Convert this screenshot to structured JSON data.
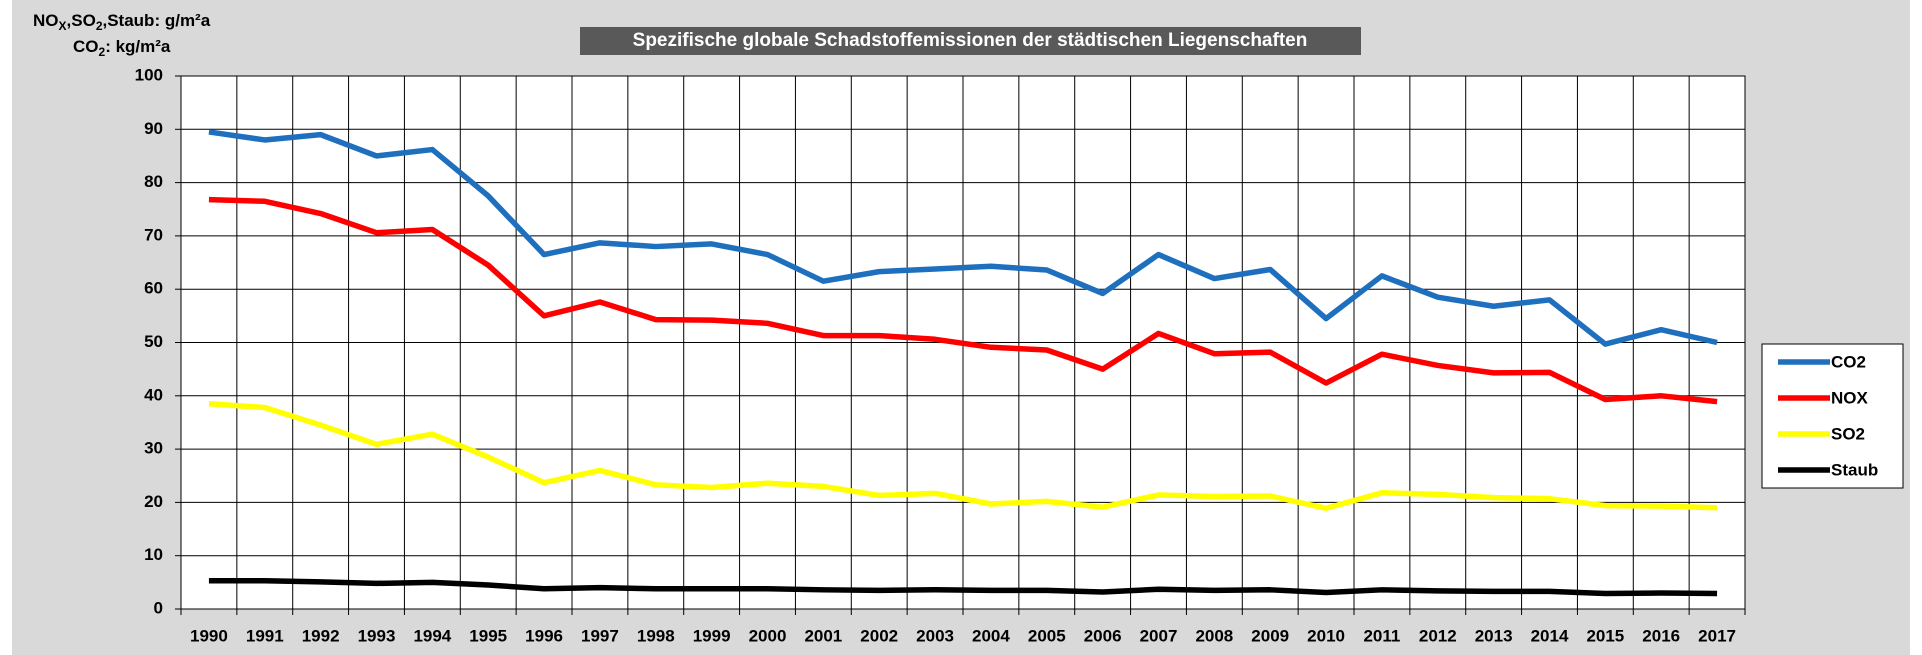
{
  "chart_data": {
    "type": "line",
    "title": "Spezifische globale Schadstoffemissionen der städtischen Liegenschaften",
    "y_label": [
      [
        "NO",
        "X",
        ",SO",
        "2",
        ",Staub: g/m²a"
      ],
      [
        "CO",
        "2",
        ": kg/m²a"
      ]
    ],
    "categories": [
      "1990",
      "1991",
      "1992",
      "1993",
      "1994",
      "1995",
      "1996",
      "1997",
      "1998",
      "1999",
      "2000",
      "2001",
      "2002",
      "2003",
      "2004",
      "2005",
      "2006",
      "2007",
      "2008",
      "2009",
      "2010",
      "2011",
      "2012",
      "2013",
      "2014",
      "2015",
      "2016",
      "2017"
    ],
    "ylim": [
      0,
      100
    ],
    "yticks": [
      0,
      10,
      20,
      30,
      40,
      50,
      60,
      70,
      80,
      90,
      100
    ],
    "grid": true,
    "legend": "right",
    "series": [
      {
        "name": "CO2",
        "color": "#1f6fbf",
        "values": [
          89.5,
          88,
          89,
          85,
          86.2,
          77.5,
          66.5,
          68.7,
          68,
          68.5,
          66.5,
          61.5,
          63.3,
          63.8,
          64.3,
          63.6,
          59.2,
          66.5,
          62,
          63.7,
          54.5,
          62.5,
          58.5,
          56.8,
          58,
          49.7,
          52.4,
          50
        ]
      },
      {
        "name": "NOX",
        "color": "#ff0000",
        "values": [
          76.8,
          76.5,
          74.2,
          70.6,
          71.2,
          64.5,
          55,
          57.6,
          54.3,
          54.2,
          53.6,
          51.3,
          51.3,
          50.6,
          49.1,
          48.6,
          45,
          51.7,
          47.9,
          48.2,
          42.4,
          47.8,
          45.7,
          44.3,
          44.4,
          39.3,
          40,
          38.9
        ]
      },
      {
        "name": "SO2",
        "color": "#ffff00",
        "values": [
          38.5,
          37.8,
          34.5,
          30.9,
          32.8,
          28.5,
          23.7,
          26,
          23.3,
          22.8,
          23.6,
          23,
          21.3,
          21.7,
          19.7,
          20.2,
          19.1,
          21.4,
          21.1,
          21.2,
          18.9,
          21.8,
          21.5,
          20.9,
          20.7,
          19.4,
          19.3,
          19
        ]
      },
      {
        "name": "Staub",
        "color": "#000000",
        "values": [
          5.3,
          5.3,
          5.1,
          4.8,
          5,
          4.5,
          3.8,
          4,
          3.8,
          3.8,
          3.8,
          3.6,
          3.5,
          3.6,
          3.5,
          3.5,
          3.2,
          3.7,
          3.5,
          3.6,
          3.1,
          3.6,
          3.4,
          3.3,
          3.3,
          2.9,
          3,
          2.9
        ]
      }
    ]
  }
}
